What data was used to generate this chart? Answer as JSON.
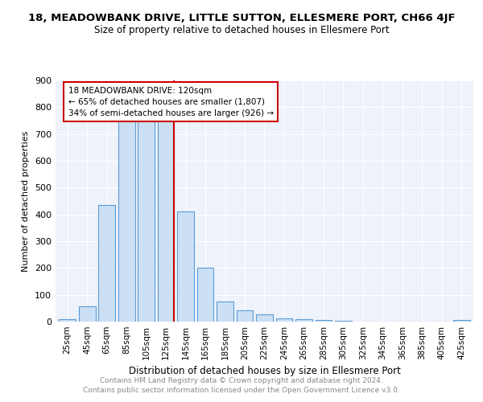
{
  "title": "18, MEADOWBANK DRIVE, LITTLE SUTTON, ELLESMERE PORT, CH66 4JF",
  "subtitle": "Size of property relative to detached houses in Ellesmere Port",
  "xlabel": "Distribution of detached houses by size in Ellesmere Port",
  "ylabel": "Number of detached properties",
  "bar_labels": [
    "25sqm",
    "45sqm",
    "65sqm",
    "85sqm",
    "105sqm",
    "125sqm",
    "145sqm",
    "165sqm",
    "185sqm",
    "205sqm",
    "225sqm",
    "245sqm",
    "265sqm",
    "285sqm",
    "305sqm",
    "325sqm",
    "345sqm",
    "365sqm",
    "385sqm",
    "405sqm",
    "425sqm"
  ],
  "bar_values": [
    10,
    58,
    435,
    750,
    750,
    750,
    410,
    200,
    75,
    43,
    26,
    13,
    8,
    5,
    2,
    0,
    0,
    0,
    0,
    0,
    5
  ],
  "bar_color": "#cce0f5",
  "bar_edge_color": "#5b9bd5",
  "property_line_label": "18 MEADOWBANK DRIVE: 120sqm",
  "annotation_line1": "← 65% of detached houses are smaller (1,807)",
  "annotation_line2": "34% of semi-detached houses are larger (926) →",
  "annotation_box_color": "#ffffff",
  "annotation_box_edge": "#cc0000",
  "vline_color": "#cc0000",
  "ylim": [
    0,
    900
  ],
  "yticks": [
    0,
    100,
    200,
    300,
    400,
    500,
    600,
    700,
    800,
    900
  ],
  "bg_color": "#eef2fa",
  "footer_line1": "Contains HM Land Registry data © Crown copyright and database right 2024.",
  "footer_line2": "Contains public sector information licensed under the Open Government Licence v3.0.",
  "title_fontsize": 9.5,
  "subtitle_fontsize": 8.5
}
